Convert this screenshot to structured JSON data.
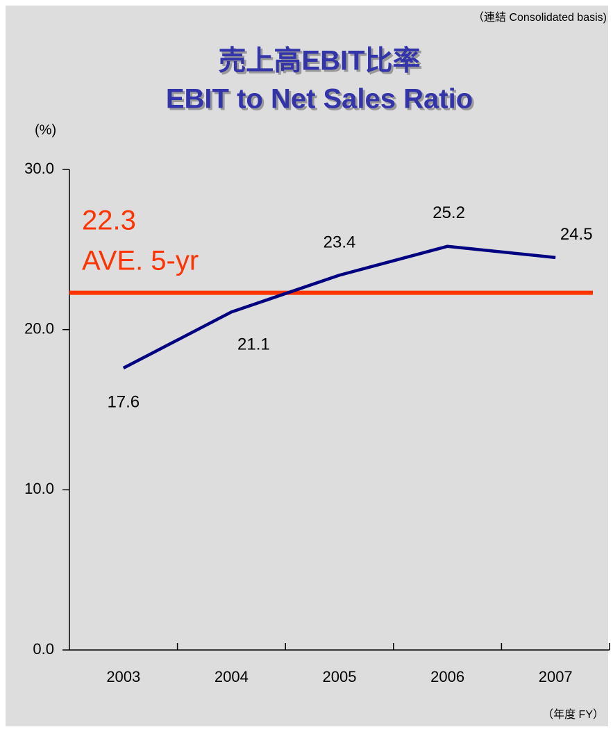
{
  "chart_data": {
    "type": "line",
    "note": "（連結  Consolidated basis)",
    "title": "売上高EBIT比率",
    "subtitle": "EBIT to Net Sales Ratio",
    "ylabel": "(%)",
    "xlabel": "（年度 FY）",
    "categories": [
      "2003",
      "2004",
      "2005",
      "2006",
      "2007"
    ],
    "series": [
      {
        "name": "EBIT to Net Sales Ratio",
        "color": "#000080",
        "values": [
          17.6,
          21.1,
          23.4,
          25.2,
          24.5
        ]
      }
    ],
    "average": {
      "value": 22.3,
      "label": "AVE. 5-yr",
      "color": "#ff3300"
    },
    "ylim": [
      0,
      30
    ],
    "yticks": [
      {
        "value": 0,
        "label": "0.0"
      },
      {
        "value": 10,
        "label": "10.0"
      },
      {
        "value": 20,
        "label": "20.0"
      },
      {
        "value": 30,
        "label": "30.0"
      }
    ]
  }
}
